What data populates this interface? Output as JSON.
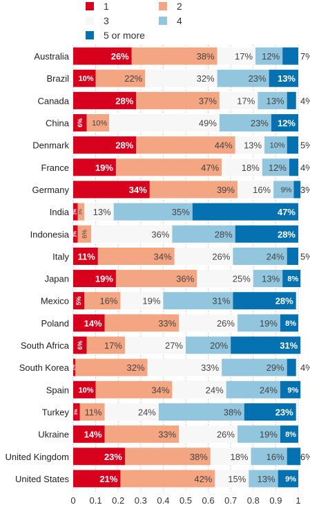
{
  "chart_data": {
    "type": "bar",
    "orientation": "horizontal",
    "stacked": true,
    "title": "",
    "xlabel": "",
    "ylabel": "",
    "xlim": [
      0,
      1
    ],
    "xticks": [
      "0",
      "0.1",
      "0.2",
      "0.3",
      "0.4",
      "0.5",
      "0.6",
      "0.7",
      "0.8",
      "0.9",
      "1"
    ],
    "grid": "vertical",
    "legend_position": "top",
    "categories": [
      "Australia",
      "Brazil",
      "Canada",
      "China",
      "Denmark",
      "France",
      "Germany",
      "India",
      "Indonesia",
      "Italy",
      "Japan",
      "Mexico",
      "Poland",
      "South Africa",
      "South Korea",
      "Spain",
      "Turkey",
      "Ukraine",
      "United Kingdom",
      "United States"
    ],
    "series": [
      {
        "name": "1",
        "color": "#d7011d",
        "values": [
          0.26,
          0.1,
          0.28,
          0.06,
          0.28,
          0.19,
          0.34,
          0.02,
          0.02,
          0.11,
          0.19,
          0.05,
          0.14,
          0.06,
          0.01,
          0.1,
          0.03,
          0.14,
          0.23,
          0.21
        ],
        "labels": [
          "26%",
          "10%",
          "28%",
          "6%",
          "28%",
          "19%",
          "34%",
          "2%",
          "2%",
          "11%",
          "19%",
          "5%",
          "14%",
          "6%",
          "1%",
          "10%",
          "3%",
          "14%",
          "23%",
          "21%"
        ]
      },
      {
        "name": "2",
        "color": "#f4a582",
        "values": [
          0.38,
          0.22,
          0.37,
          0.1,
          0.44,
          0.47,
          0.39,
          0.03,
          0.06,
          0.34,
          0.36,
          0.16,
          0.33,
          0.17,
          0.32,
          0.34,
          0.11,
          0.33,
          0.38,
          0.42
        ],
        "labels": [
          "38%",
          "22%",
          "37%",
          "10%",
          "44%",
          "47%",
          "39%",
          "3%",
          "6%",
          "34%",
          "36%",
          "16%",
          "33%",
          "17%",
          "32%",
          "34%",
          "11%",
          "33%",
          "38%",
          "42%"
        ]
      },
      {
        "name": "3",
        "color": "#f7f7f7",
        "values": [
          0.17,
          0.32,
          0.17,
          0.49,
          0.13,
          0.18,
          0.16,
          0.13,
          0.36,
          0.26,
          0.25,
          0.19,
          0.26,
          0.27,
          0.33,
          0.24,
          0.24,
          0.26,
          0.18,
          0.15
        ],
        "labels": [
          "17%",
          "32%",
          "17%",
          "49%",
          "13%",
          "18%",
          "16%",
          "13%",
          "36%",
          "26%",
          "25%",
          "19%",
          "26%",
          "27%",
          "33%",
          "24%",
          "24%",
          "26%",
          "18%",
          "15%"
        ]
      },
      {
        "name": "4",
        "color": "#92c5de",
        "values": [
          0.12,
          0.23,
          0.13,
          0.23,
          0.1,
          0.12,
          0.09,
          0.35,
          0.28,
          0.24,
          0.13,
          0.31,
          0.19,
          0.2,
          0.29,
          0.24,
          0.38,
          0.19,
          0.16,
          0.13
        ],
        "labels": [
          "12%",
          "23%",
          "13%",
          "23%",
          "10%",
          "12%",
          "9%",
          "35%",
          "28%",
          "24%",
          "13%",
          "31%",
          "19%",
          "20%",
          "29%",
          "24%",
          "38%",
          "19%",
          "16%",
          "13%"
        ]
      },
      {
        "name": "5 or more",
        "color": "#0571b0",
        "values": [
          0.07,
          0.13,
          0.04,
          0.12,
          0.05,
          0.04,
          0.03,
          0.47,
          0.28,
          0.05,
          0.08,
          0.28,
          0.08,
          0.31,
          0.04,
          0.09,
          0.23,
          0.08,
          0.06,
          0.09
        ],
        "labels": [
          "7%",
          "13%",
          "4%",
          "12%",
          "5%",
          "4%",
          "3%",
          "47%",
          "28%",
          "5%",
          "8%",
          "28%",
          "8%",
          "31%",
          "4%",
          "9%",
          "23%",
          "8%",
          "6%",
          "9%"
        ]
      }
    ]
  }
}
